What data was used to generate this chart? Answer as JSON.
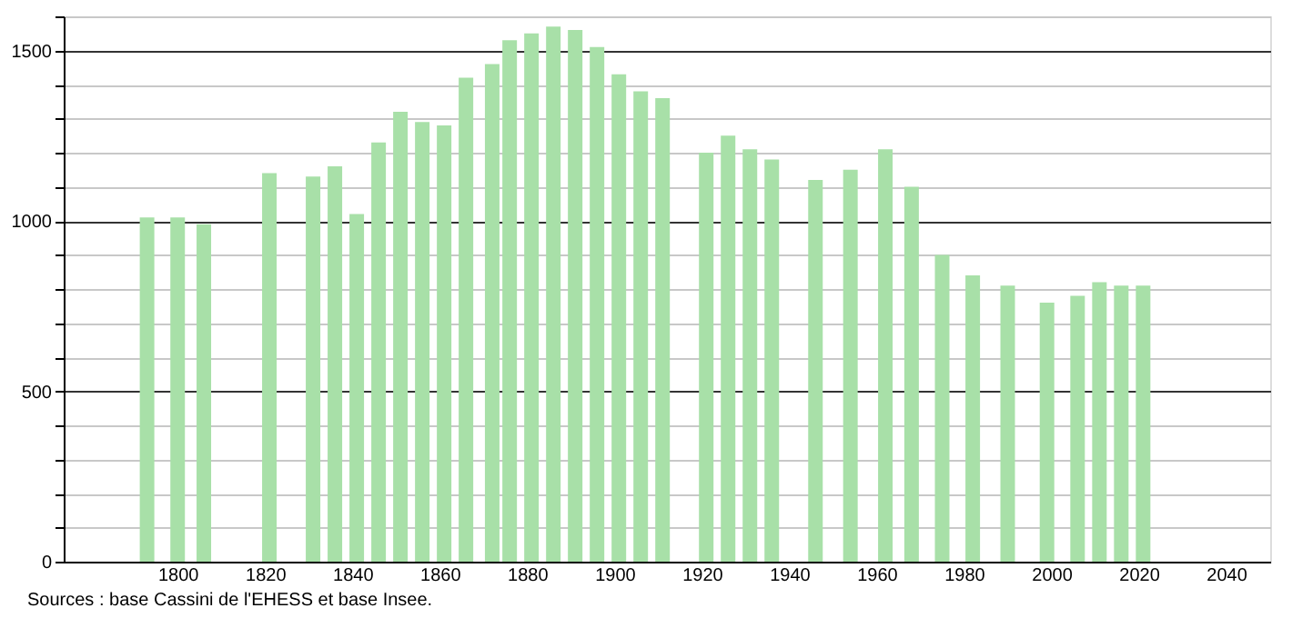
{
  "chart_data": {
    "type": "bar",
    "x": [
      1793,
      1800,
      1806,
      1821,
      1831,
      1836,
      1841,
      1846,
      1851,
      1856,
      1861,
      1866,
      1872,
      1876,
      1881,
      1886,
      1891,
      1896,
      1901,
      1906,
      1911,
      1921,
      1926,
      1931,
      1936,
      1946,
      1954,
      1962,
      1968,
      1975,
      1982,
      1990,
      1999,
      2006,
      2011,
      2016,
      2021
    ],
    "values": [
      1010,
      1010,
      990,
      1140,
      1130,
      1160,
      1020,
      1230,
      1320,
      1290,
      1280,
      1420,
      1460,
      1530,
      1550,
      1570,
      1560,
      1510,
      1430,
      1380,
      1360,
      1200,
      1250,
      1210,
      1180,
      1120,
      1150,
      1210,
      1100,
      900,
      840,
      810,
      760,
      780,
      820,
      810,
      810
    ],
    "color": "#a8e0a8",
    "xlim": [
      1776,
      2048
    ],
    "xticks": [
      1800,
      1820,
      1840,
      1860,
      1880,
      1900,
      1920,
      1940,
      1960,
      1980,
      2000,
      2020,
      2040
    ],
    "ylim": [
      0,
      1600
    ],
    "yticks": [
      0,
      {
        "value": 100,
        "label": null
      },
      {
        "value": 200,
        "label": null
      },
      {
        "value": 300,
        "label": null
      },
      {
        "value": 400,
        "label": null
      },
      500,
      {
        "value": 600,
        "label": null
      },
      {
        "value": 700,
        "label": null
      },
      {
        "value": 800,
        "label": null
      },
      {
        "value": 900,
        "label": null
      },
      1000,
      {
        "value": 1100,
        "label": null
      },
      {
        "value": 1200,
        "label": null
      },
      {
        "value": 1300,
        "label": null
      },
      {
        "value": 1400,
        "label": null
      },
      1500,
      {
        "value": 1600,
        "label": null
      }
    ],
    "grid": "y",
    "annotations": [
      "Sources : base Cassini de l'EHESS et base Insee."
    ]
  }
}
